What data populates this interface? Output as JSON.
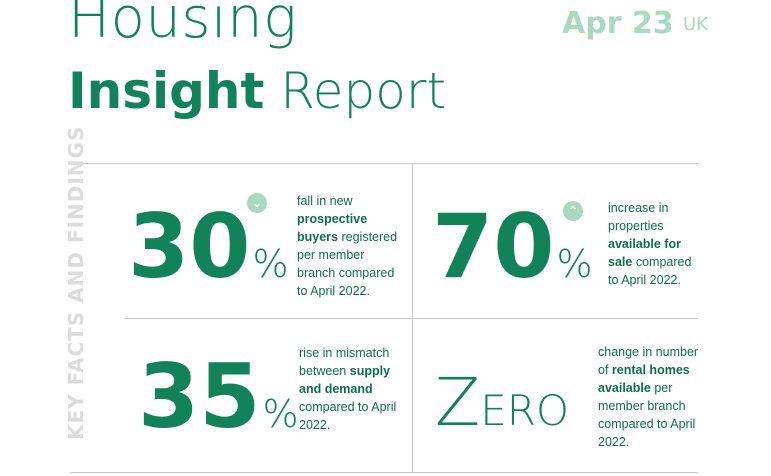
{
  "header": {
    "title_line1": "Housing",
    "title_line2_bold": "Insight",
    "title_line2_light": "Report",
    "date": "Apr 23",
    "country": "UK"
  },
  "side_label": "KEY FACTS AND FINDINGS",
  "colors": {
    "accent": "#12825a",
    "badge": "#a9d9c2",
    "divider": "#c8c8c8"
  },
  "facts": [
    {
      "number": "30",
      "suffix": "%",
      "trend_icon": "chevron-down-icon",
      "desc_1": "fall in new",
      "desc_bold": "prospective buyers",
      "desc_2": "registered per member branch compared to April 2022."
    },
    {
      "number": "70",
      "suffix": "%",
      "trend_icon": "chevron-up-icon",
      "desc_1": "increase in properties",
      "desc_bold": "available for sale",
      "desc_2": "compared to April 2022."
    },
    {
      "number": "35",
      "suffix": "%",
      "desc_1": "rise in mismatch between",
      "desc_bold": "supply and demand",
      "desc_2": "compared to April 2022."
    },
    {
      "number_first": "Z",
      "number_rest": "ERO",
      "desc_1": "change in number of",
      "desc_bold": "rental homes available",
      "desc_2": "per member branch compared to April 2022."
    }
  ]
}
